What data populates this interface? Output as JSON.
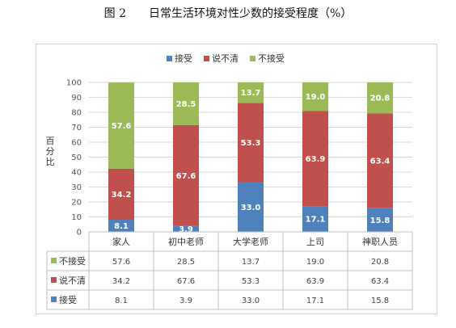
{
  "figure": {
    "title": "图 2　　日常生活环境对性少数的接受程度（%）"
  },
  "chart_data": {
    "type": "bar",
    "stacked": true,
    "categories": [
      "家人",
      "初中老师",
      "大学老师",
      "上司",
      "神职人员"
    ],
    "series": [
      {
        "name": "接受",
        "color": "#4f81bd",
        "values": [
          8.1,
          3.9,
          33.0,
          17.1,
          15.8
        ]
      },
      {
        "name": "说不清",
        "color": "#c0504d",
        "values": [
          34.2,
          67.6,
          53.3,
          63.9,
          63.4
        ]
      },
      {
        "name": "不接受",
        "color": "#9bbb59",
        "values": [
          57.6,
          28.5,
          13.7,
          19.0,
          20.8
        ]
      }
    ],
    "table_order": [
      2,
      1,
      0
    ],
    "title": "图 2　　日常生活环境对性少数的接受程度（%）",
    "xlabel": "",
    "ylabel": "百分比",
    "ylim": [
      0,
      100
    ],
    "yticks": [
      0,
      10,
      20,
      30,
      40,
      50,
      60,
      70,
      80,
      90,
      100
    ],
    "grid": true,
    "legend": "top-center",
    "data_table": true
  }
}
